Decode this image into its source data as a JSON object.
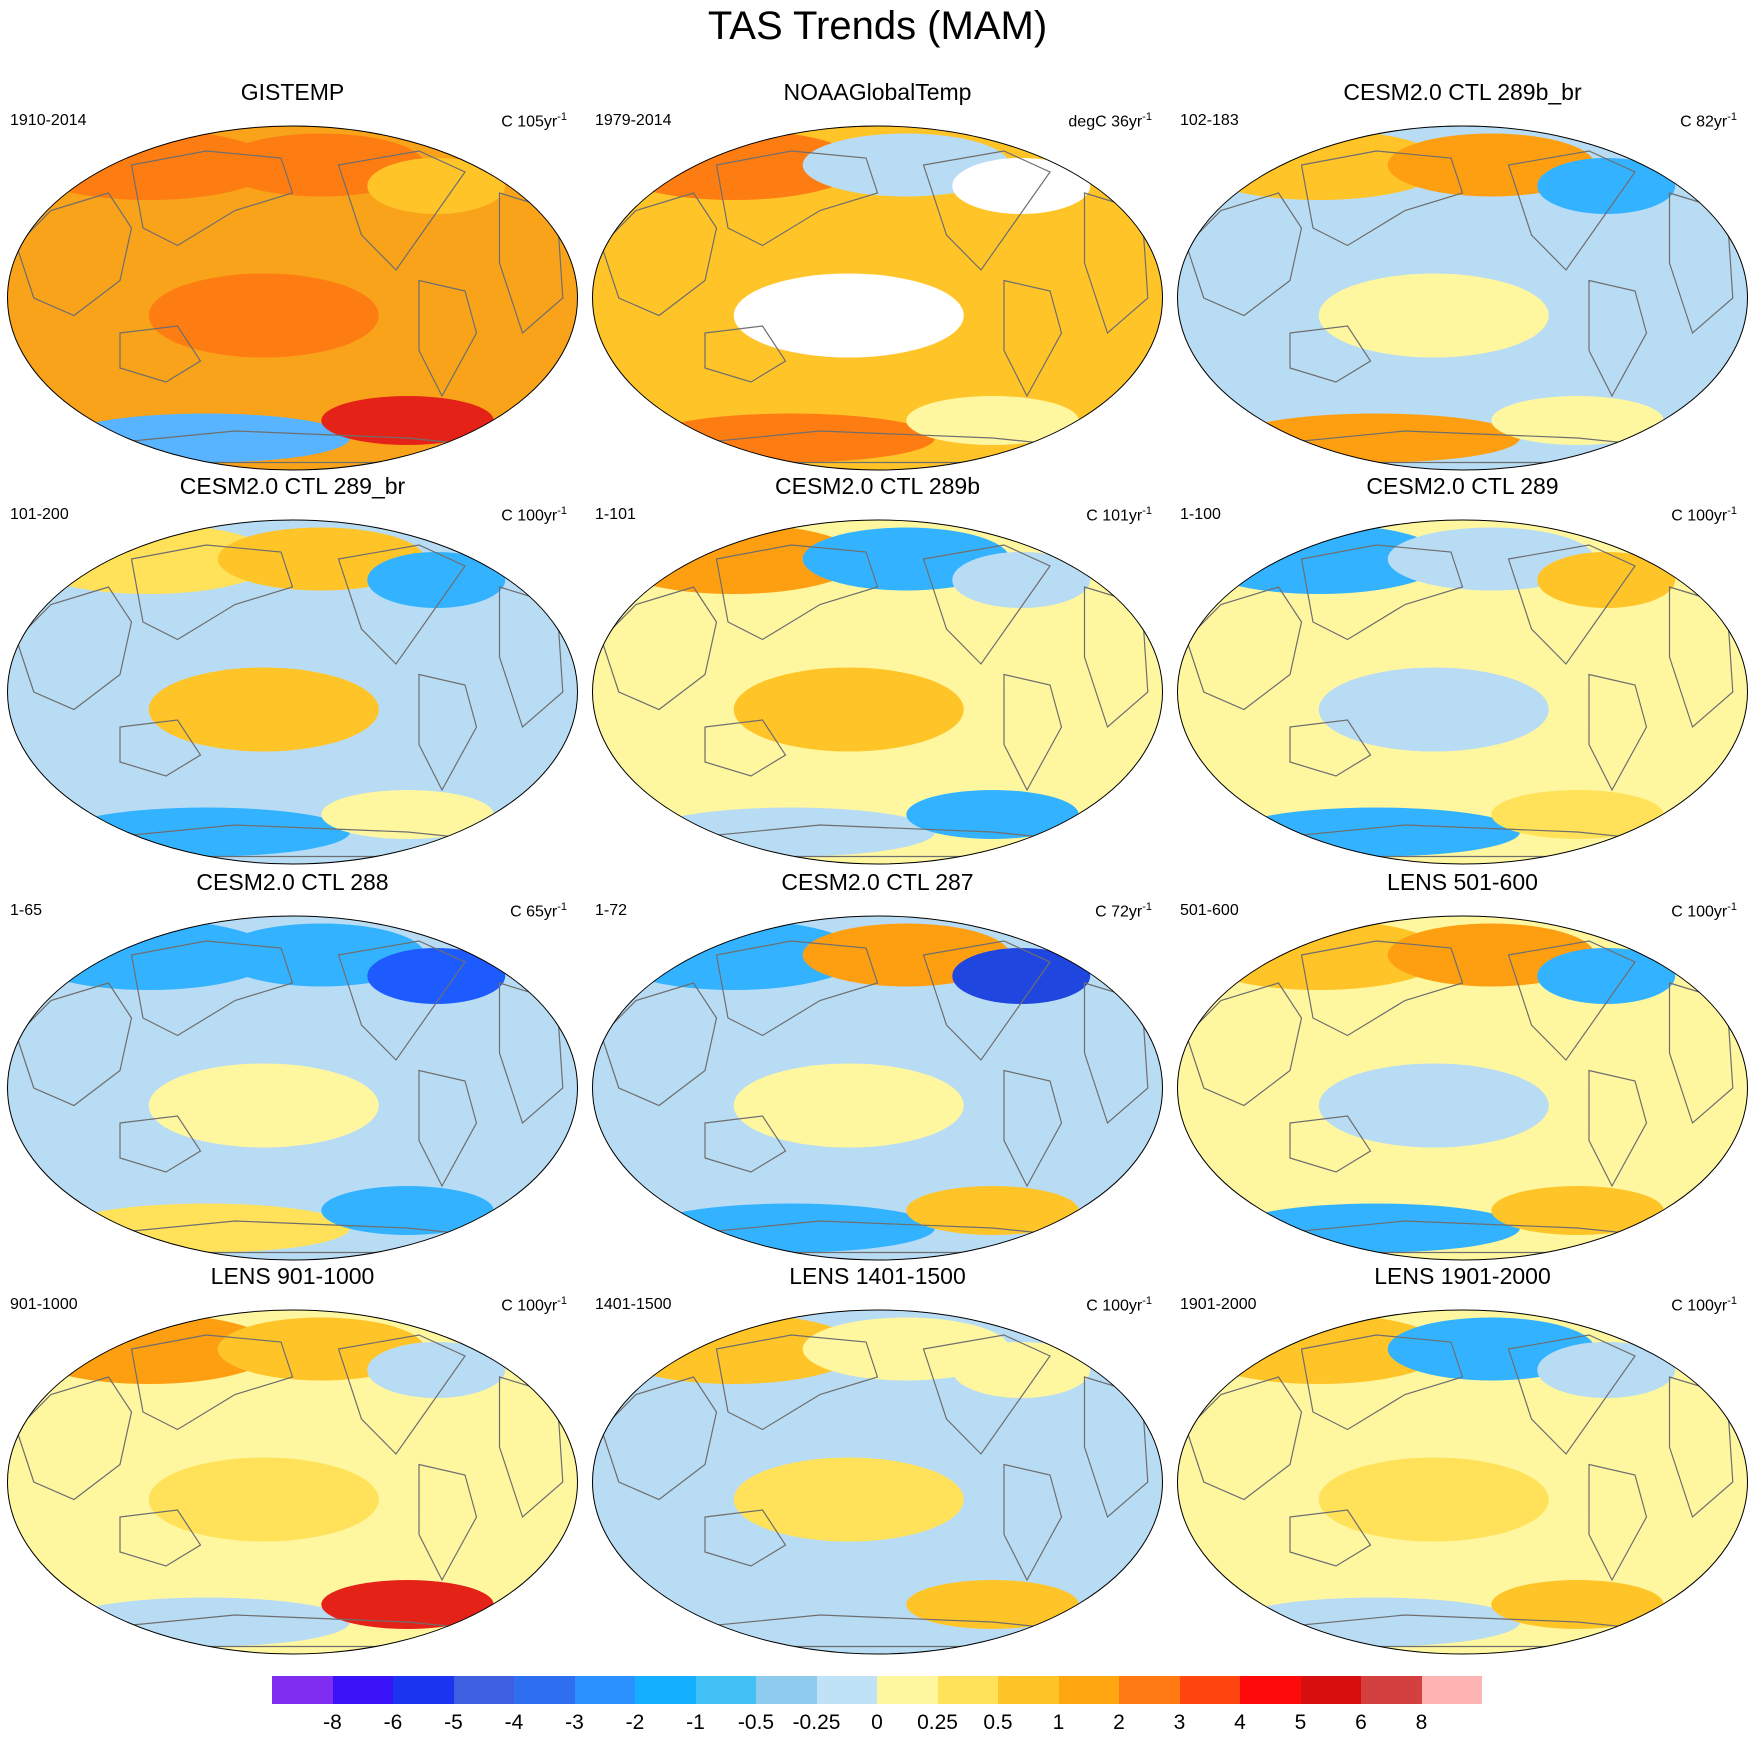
{
  "title": "TAS Trends (MAM)",
  "panels": [
    {
      "title": "GISTEMP",
      "left_label": "1910-2014",
      "unit_prefix": "C 105yr",
      "unit_exp": "-1",
      "base": "#f9a31a",
      "blobs": [
        {
          "c": "#fe7d12"
        },
        {
          "c": "#fe7d12"
        },
        {
          "c": "#ffc428"
        },
        {
          "c": "#fe7d12"
        },
        {
          "c": "#59b4ff"
        },
        {
          "c": "#e42218"
        }
      ]
    },
    {
      "title": "NOAAGlobalTemp",
      "left_label": "1979-2014",
      "unit_prefix": "degC 36yr",
      "unit_exp": "-1",
      "base": "#ffc428",
      "blobs": [
        {
          "c": "#fe7d12"
        },
        {
          "c": "#b8dcf4"
        },
        {
          "c": "#ffffff"
        },
        {
          "c": "#ffffff"
        },
        {
          "c": "#fe7d12"
        },
        {
          "c": "#fff7a0"
        }
      ]
    },
    {
      "title": "CESM2.0 CTL 289b_br",
      "left_label": "102-183",
      "unit_prefix": "C 82yr",
      "unit_exp": "-1",
      "base": "#b8dcf4",
      "blobs": [
        {
          "c": "#ffc428"
        },
        {
          "c": "#fe9f12"
        },
        {
          "c": "#33b3ff"
        },
        {
          "c": "#fff7a0"
        },
        {
          "c": "#fe9f12"
        },
        {
          "c": "#fff7a0"
        }
      ]
    },
    {
      "title": "CESM2.0 CTL 289_br",
      "left_label": "101-200",
      "unit_prefix": "C 100yr",
      "unit_exp": "-1",
      "base": "#b8dcf4",
      "blobs": [
        {
          "c": "#ffe25a"
        },
        {
          "c": "#ffc428"
        },
        {
          "c": "#33b3ff"
        },
        {
          "c": "#ffc428"
        },
        {
          "c": "#33b3ff"
        },
        {
          "c": "#fff7a0"
        }
      ]
    },
    {
      "title": "CESM2.0 CTL 289b",
      "left_label": "1-101",
      "unit_prefix": "C 101yr",
      "unit_exp": "-1",
      "base": "#fff7a0",
      "blobs": [
        {
          "c": "#fe9f12"
        },
        {
          "c": "#33b3ff"
        },
        {
          "c": "#b8dcf4"
        },
        {
          "c": "#ffc428"
        },
        {
          "c": "#b8dcf4"
        },
        {
          "c": "#33b3ff"
        }
      ]
    },
    {
      "title": "CESM2.0 CTL 289",
      "left_label": "1-100",
      "unit_prefix": "C 100yr",
      "unit_exp": "-1",
      "base": "#fff7a0",
      "blobs": [
        {
          "c": "#33b3ff"
        },
        {
          "c": "#b8dcf4"
        },
        {
          "c": "#ffc428"
        },
        {
          "c": "#b8dcf4"
        },
        {
          "c": "#33b3ff"
        },
        {
          "c": "#ffe25a"
        }
      ]
    },
    {
      "title": "CESM2.0 CTL 288",
      "left_label": "1-65",
      "unit_prefix": "C 65yr",
      "unit_exp": "-1",
      "base": "#b8dcf4",
      "blobs": [
        {
          "c": "#33b3ff"
        },
        {
          "c": "#33b3ff"
        },
        {
          "c": "#1e5bff"
        },
        {
          "c": "#fff7a0"
        },
        {
          "c": "#ffe25a"
        },
        {
          "c": "#33b3ff"
        }
      ]
    },
    {
      "title": "CESM2.0 CTL 287",
      "left_label": "1-72",
      "unit_prefix": "C 72yr",
      "unit_exp": "-1",
      "base": "#b8dcf4",
      "blobs": [
        {
          "c": "#33b3ff"
        },
        {
          "c": "#fe9f12"
        },
        {
          "c": "#2046e0"
        },
        {
          "c": "#fff7a0"
        },
        {
          "c": "#33b3ff"
        },
        {
          "c": "#ffc428"
        }
      ]
    },
    {
      "title": "LENS 501-600",
      "left_label": "501-600",
      "unit_prefix": "C 100yr",
      "unit_exp": "-1",
      "base": "#fff7a0",
      "blobs": [
        {
          "c": "#ffc428"
        },
        {
          "c": "#fe9f12"
        },
        {
          "c": "#33b3ff"
        },
        {
          "c": "#b8dcf4"
        },
        {
          "c": "#33b3ff"
        },
        {
          "c": "#ffc428"
        }
      ]
    },
    {
      "title": "LENS 901-1000",
      "left_label": "901-1000",
      "unit_prefix": "C 100yr",
      "unit_exp": "-1",
      "base": "#fff7a0",
      "blobs": [
        {
          "c": "#fe9f12"
        },
        {
          "c": "#ffc428"
        },
        {
          "c": "#b8dcf4"
        },
        {
          "c": "#ffe25a"
        },
        {
          "c": "#b8dcf4"
        },
        {
          "c": "#e42218"
        }
      ]
    },
    {
      "title": "LENS 1401-1500",
      "left_label": "1401-1500",
      "unit_prefix": "C 100yr",
      "unit_exp": "-1",
      "base": "#b8dcf4",
      "blobs": [
        {
          "c": "#ffc428"
        },
        {
          "c": "#fff7a0"
        },
        {
          "c": "#fff7a0"
        },
        {
          "c": "#ffe25a"
        },
        {
          "c": "#b8dcf4"
        },
        {
          "c": "#ffc428"
        }
      ]
    },
    {
      "title": "LENS 1901-2000",
      "left_label": "1901-2000",
      "unit_prefix": "C 100yr",
      "unit_exp": "-1",
      "base": "#fff7a0",
      "blobs": [
        {
          "c": "#ffc428"
        },
        {
          "c": "#33b3ff"
        },
        {
          "c": "#b8dcf4"
        },
        {
          "c": "#ffe25a"
        },
        {
          "c": "#b8dcf4"
        },
        {
          "c": "#ffc428"
        }
      ]
    }
  ],
  "colorbar": {
    "colors": [
      "#7f2df0",
      "#3a12f8",
      "#1a34f0",
      "#3d5fe0",
      "#2d6ff0",
      "#2a91ff",
      "#14b0ff",
      "#42c1f7",
      "#8ecbef",
      "#bfe2f6",
      "#fff7a0",
      "#ffe25a",
      "#ffc428",
      "#ffa610",
      "#ff7a12",
      "#ff4610",
      "#ff0a0a",
      "#d80f0f",
      "#d44040",
      "#ffb4b4"
    ],
    "labels": [
      "-8",
      "-6",
      "-5",
      "-4",
      "-3",
      "-2",
      "-1",
      "-0.5",
      "-0.25",
      "0",
      "0.25",
      "0.5",
      "1",
      "2",
      "3",
      "4",
      "5",
      "6",
      "8"
    ]
  }
}
